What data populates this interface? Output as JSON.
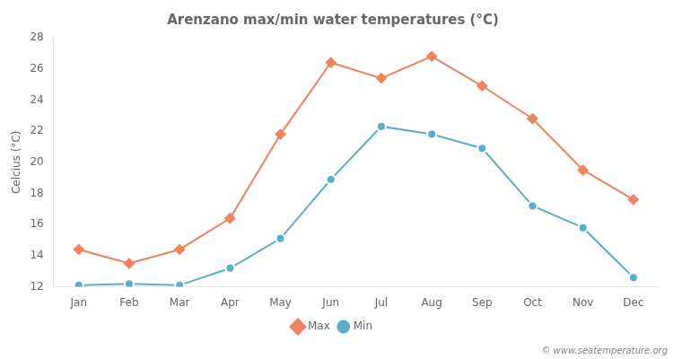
{
  "chart_data": {
    "type": "line",
    "title": "Arenzano max/min water temperatures (°C)",
    "ylabel": "Celcius (°C)",
    "categories": [
      "Jan",
      "Feb",
      "Mar",
      "Apr",
      "May",
      "Jun",
      "Jul",
      "Aug",
      "Sep",
      "Oct",
      "Nov",
      "Dec"
    ],
    "series": [
      {
        "name": "Max",
        "color": "#f0845c",
        "marker": "diamond",
        "line_style": "solid",
        "values": [
          14.4,
          13.5,
          14.4,
          16.4,
          21.8,
          26.4,
          25.4,
          26.8,
          24.9,
          22.8,
          19.5,
          17.6
        ]
      },
      {
        "name": "Min",
        "color": "#5aaecc",
        "marker": "circle",
        "line_style": "solid",
        "values": [
          12.1,
          12.2,
          12.1,
          13.2,
          15.1,
          18.9,
          22.3,
          21.8,
          20.9,
          17.2,
          15.8,
          12.6
        ]
      }
    ],
    "ylim": [
      12,
      28
    ],
    "yticks": [
      12,
      14,
      16,
      18,
      20,
      22,
      24,
      26,
      28
    ],
    "grid": false,
    "legend": "bottom",
    "annotations": [
      "© www.seatemperature.org"
    ]
  }
}
